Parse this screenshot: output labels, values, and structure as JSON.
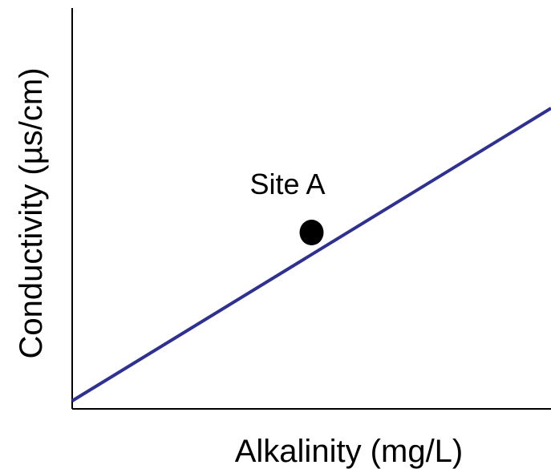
{
  "chart_data": {
    "type": "scatter",
    "title": "",
    "xlabel": "Alkalinity (mg/L)",
    "ylabel": "Conductivity (µs/cm)",
    "xticks": [],
    "yticks": [],
    "xlim": [
      0,
      10
    ],
    "ylim": [
      0,
      10
    ],
    "grid": false,
    "series": [
      {
        "kind": "line",
        "color": "#2e3192",
        "x": [
          0,
          10
        ],
        "y": [
          0.2,
          7.5
        ]
      },
      {
        "kind": "point",
        "color": "#000000",
        "x": [
          5.0
        ],
        "y": [
          4.4
        ],
        "label": "Site A"
      }
    ]
  }
}
